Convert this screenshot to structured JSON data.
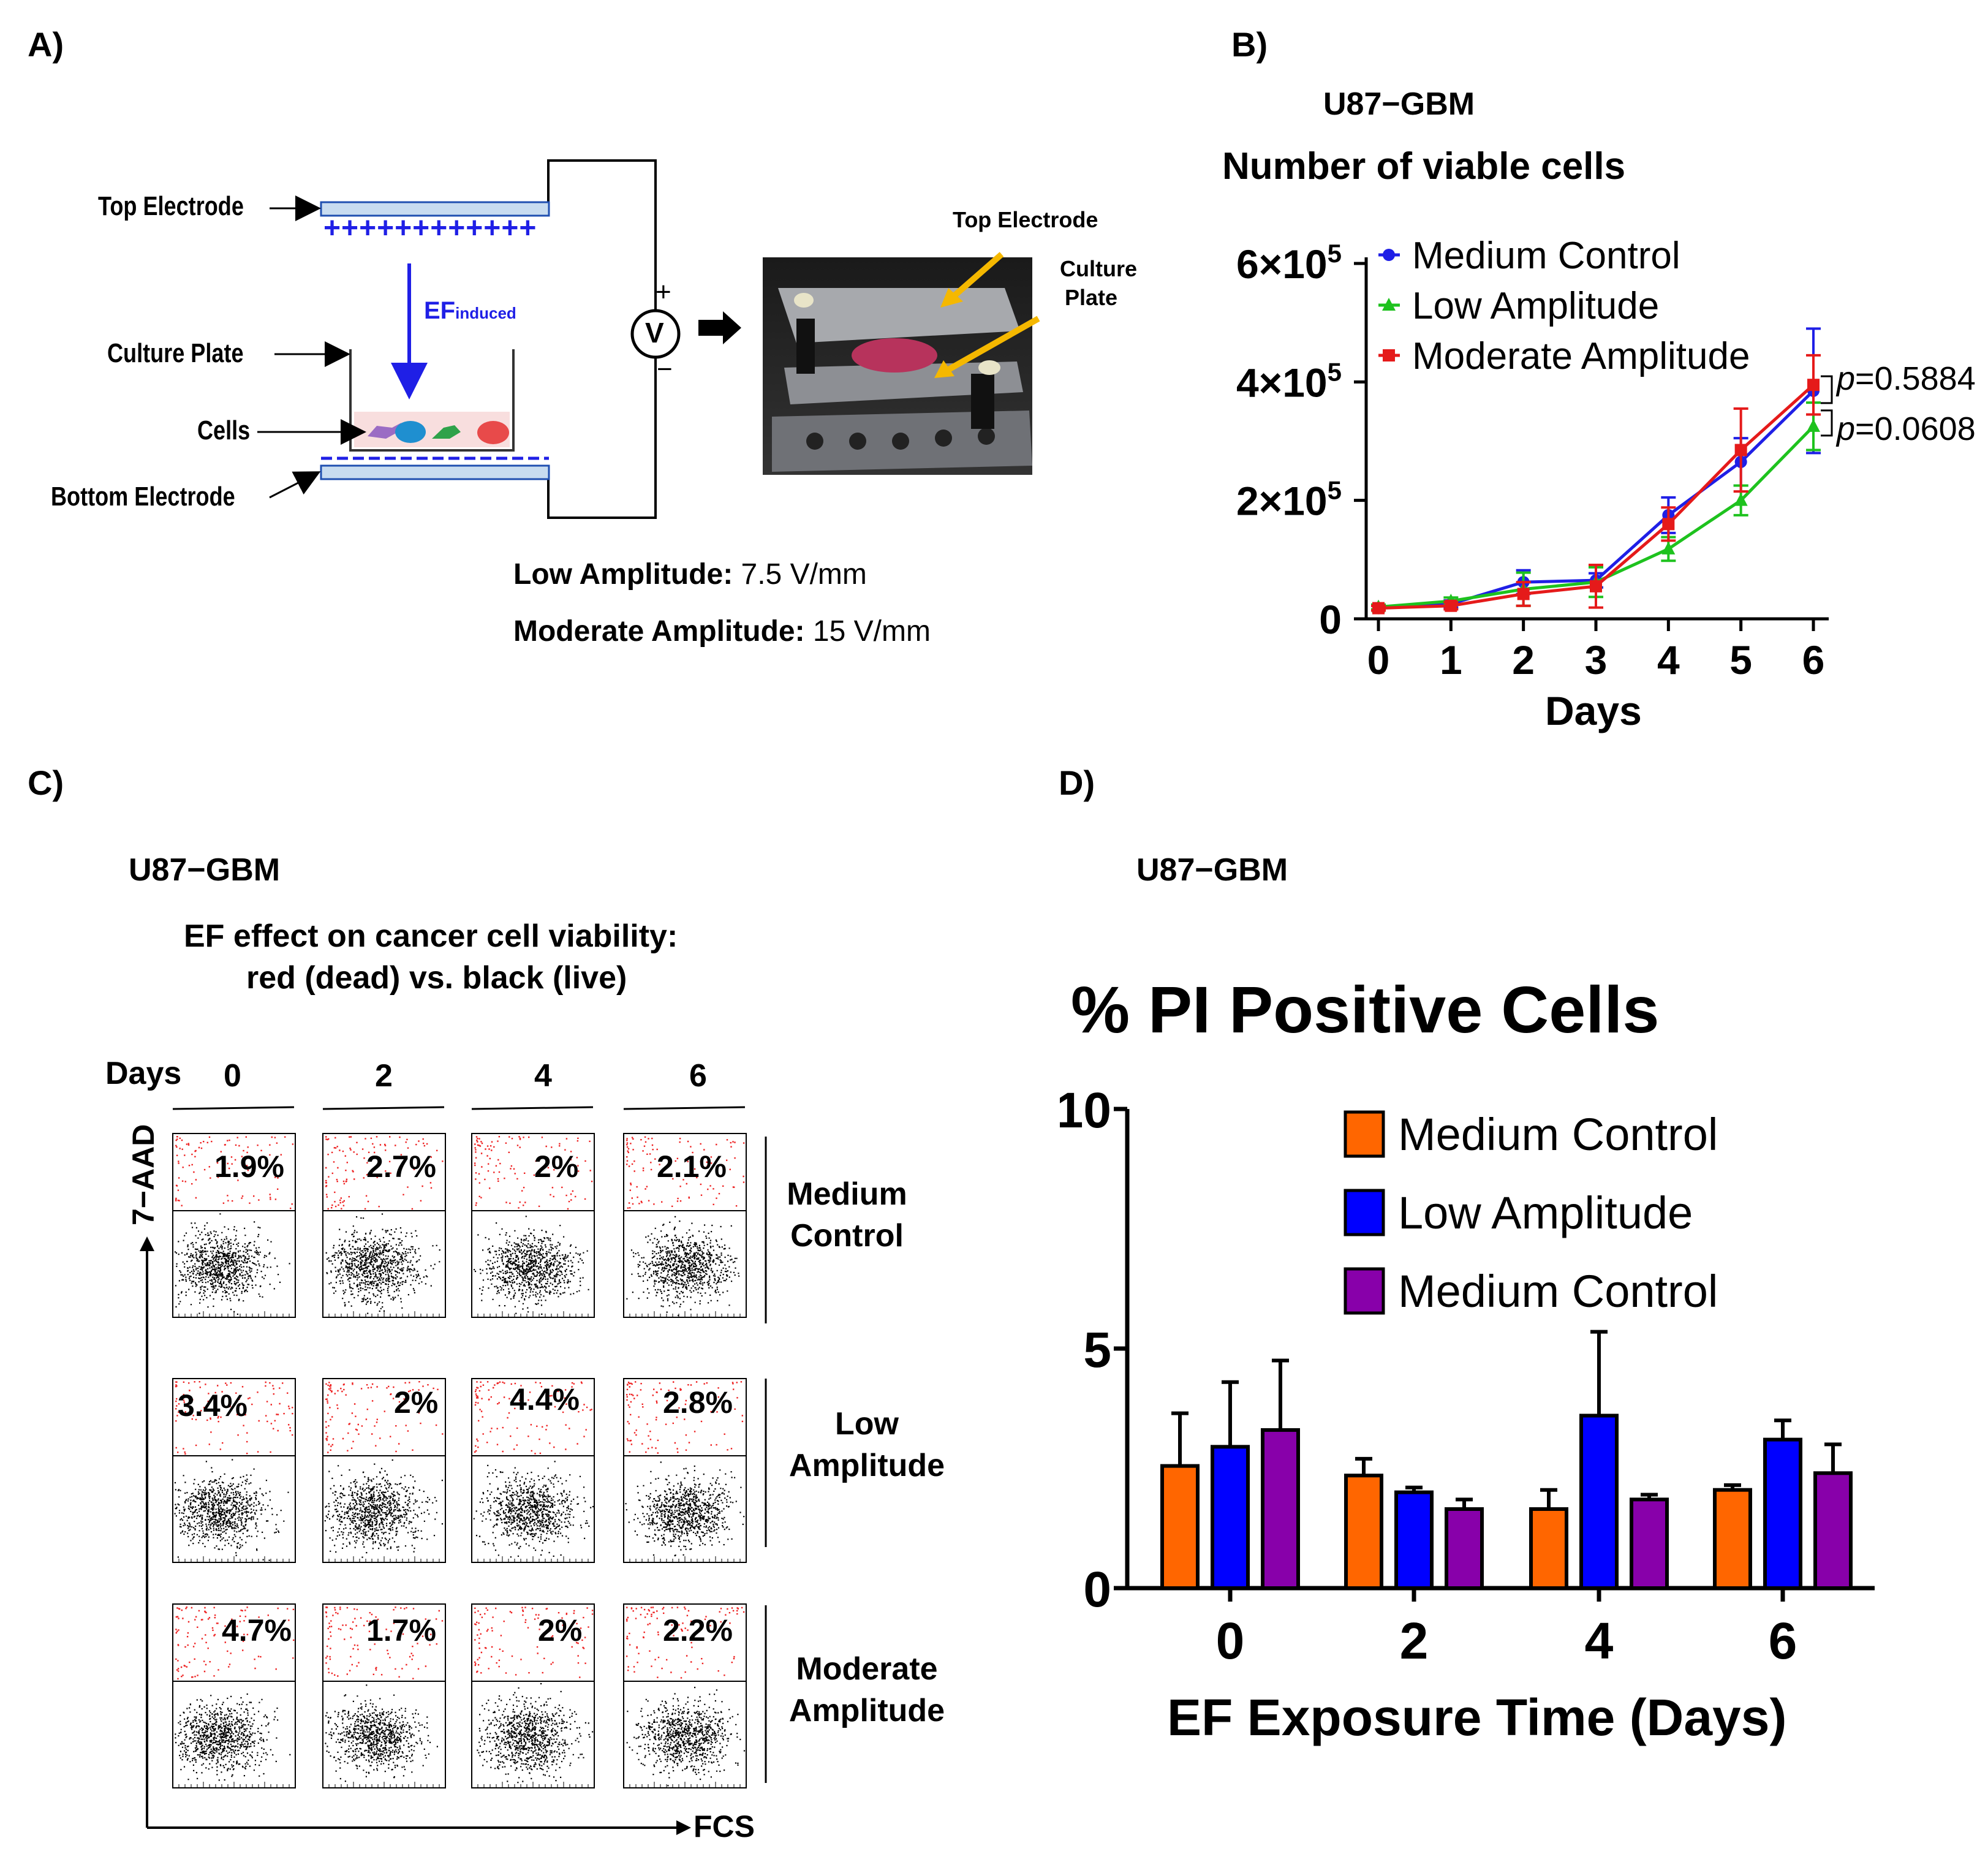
{
  "colors": {
    "blue": "#1f1fe6",
    "green": "#1ec21e",
    "red": "#e51a1a",
    "orange": "#ff6600",
    "bar_blue": "#0000ff",
    "purple": "#8800aa",
    "electrode": "#c8dcf0",
    "dot_red": "#ee2222"
  },
  "panel_a": {
    "label": "A)",
    "top_electrode": "Top Electrode",
    "culture_plate": "Culture Plate",
    "cells": "Cells",
    "bottom_electrode": "Bottom Electrode",
    "plus_signs": "++++++++++++",
    "ef_main": "EF",
    "ef_sub": "induced",
    "voltmeter": "V",
    "plus": "+",
    "minus": "−",
    "photo_top_electrode": "Top Electrode",
    "photo_culture_1": "Culture",
    "photo_culture_2": "Plate",
    "low_amp_label": "Low Amplitude:",
    "low_amp_value": "7.5 V/mm",
    "mod_amp_label": "Moderate Amplitude:",
    "mod_amp_value": "15 V/mm"
  },
  "panel_b": {
    "label": "B)",
    "cell_line": "U87−GBM"
  },
  "panel_c": {
    "label": "C)",
    "cell_line": "U87−GBM",
    "title_1": "EF effect on cancer cell viability:",
    "title_2": "red (dead) vs. black (live)",
    "days_label": "Days",
    "days": [
      "0",
      "2",
      "4",
      "6"
    ],
    "y_axis": "7−AAD",
    "x_axis": "FCS",
    "rows": [
      {
        "label_1": "Medium",
        "label_2": "Control",
        "pcts": [
          "1.9%",
          "2.7%",
          "2%",
          "2.1%"
        ]
      },
      {
        "label_1": "Low",
        "label_2": "Amplitude",
        "pcts": [
          "3.4%",
          "2%",
          "4.4%",
          "2.8%"
        ]
      },
      {
        "label_1": "Moderate",
        "label_2": "Amplitude",
        "pcts": [
          "4.7%",
          "1.7%",
          "2%",
          "2.2%"
        ]
      }
    ]
  },
  "panel_d": {
    "label": "D)",
    "cell_line": "U87−GBM"
  },
  "chart_data": [
    {
      "type": "line",
      "title": "Number of viable cells",
      "xlabel": "Days",
      "ylabel": "",
      "x": [
        0,
        1,
        2,
        3,
        4,
        5,
        6
      ],
      "ylim": [
        0,
        600000
      ],
      "yticks": [
        0,
        200000,
        400000,
        600000
      ],
      "yticklabels": [
        {
          "base": "0",
          "exp": ""
        },
        {
          "base": "2×10",
          "exp": "5"
        },
        {
          "base": "4×10",
          "exp": "5"
        },
        {
          "base": "6×10",
          "exp": "5"
        }
      ],
      "series": [
        {
          "name": "Medium Control",
          "color": "#1f1fe6",
          "marker": "circle",
          "values": [
            18000,
            25000,
            62000,
            65000,
            175000,
            265000,
            385000
          ],
          "errors": [
            4000,
            6000,
            20000,
            12000,
            30000,
            40000,
            105000
          ]
        },
        {
          "name": "Low Amplitude",
          "color": "#1ec21e",
          "marker": "triangle",
          "values": [
            20000,
            30000,
            50000,
            62000,
            118000,
            200000,
            325000
          ],
          "errors": [
            4000,
            6000,
            28000,
            25000,
            20000,
            25000,
            40000
          ]
        },
        {
          "name": "Moderate Amplitude",
          "color": "#e51a1a",
          "marker": "square",
          "values": [
            18000,
            22000,
            42000,
            55000,
            160000,
            285000,
            395000
          ],
          "errors": [
            4000,
            6000,
            20000,
            36000,
            28000,
            70000,
            50000
          ]
        }
      ],
      "annotations": [
        "p=0.5884",
        "p=0.0608"
      ]
    },
    {
      "type": "bar",
      "title": "% PI Positive Cells",
      "xlabel": "EF Exposure Time (Days)",
      "ylabel": "",
      "categories": [
        "0",
        "2",
        "4",
        "6"
      ],
      "ylim": [
        0,
        10
      ],
      "yticks": [
        0,
        5,
        10
      ],
      "series": [
        {
          "name": "Medium Control",
          "color": "#ff6600",
          "values": [
            2.55,
            2.35,
            1.65,
            2.05
          ],
          "errors": [
            1.1,
            0.35,
            0.4,
            0.1
          ]
        },
        {
          "name": "Low Amplitude",
          "color": "#0000ff",
          "values": [
            2.95,
            2.0,
            3.6,
            3.1
          ],
          "errors": [
            1.35,
            0.1,
            1.75,
            0.4
          ]
        },
        {
          "name": "Medium Control",
          "color": "#8800aa",
          "values": [
            3.3,
            1.65,
            1.85,
            2.4
          ],
          "errors": [
            1.45,
            0.2,
            0.1,
            0.6
          ]
        }
      ]
    }
  ]
}
